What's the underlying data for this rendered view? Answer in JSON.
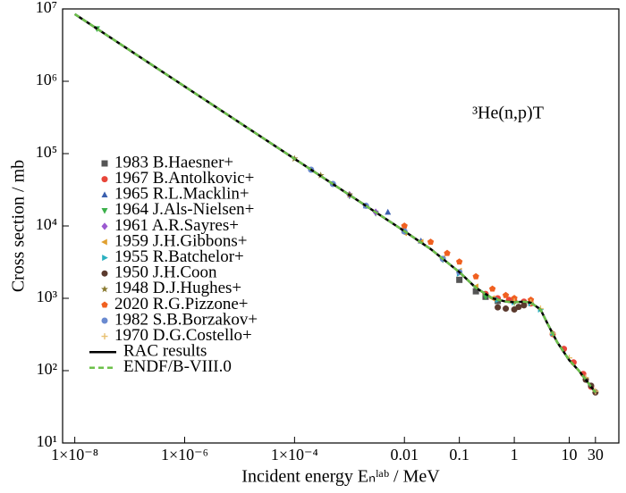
{
  "chart_data": {
    "type": "scatter",
    "annotation": "³He(n,p)T",
    "x_label": "Incident energy Eₙˡᵃᵇ / MeV",
    "y_label": "Cross section / mb",
    "log_x": true,
    "log_y": true,
    "xlim": [
      6e-09,
      80
    ],
    "ylim": [
      10,
      10000000
    ],
    "xticks": [
      {
        "value": 1e-08,
        "label": "1×10⁻⁸"
      },
      {
        "value": 1e-06,
        "label": "1×10⁻⁶"
      },
      {
        "value": 0.0001,
        "label": "1×10⁻⁴"
      },
      0.01,
      0.1,
      1,
      10,
      30
    ],
    "yticks": [
      {
        "value": 10,
        "label": "10¹"
      },
      {
        "value": 100,
        "label": "10²"
      },
      {
        "value": 1000,
        "label": "10³"
      },
      {
        "value": 10000,
        "label": "10⁴"
      },
      {
        "value": 100000,
        "label": "10⁵"
      },
      {
        "value": 1000000,
        "label": "10⁶"
      },
      {
        "value": 10000000,
        "label": "10⁷"
      }
    ],
    "series": [
      {
        "name": "1983 B.Haesner+",
        "color": "#555555",
        "marker": "square",
        "x": [
          0.1,
          0.2,
          0.3,
          0.5
        ],
        "values": [
          1800,
          1250,
          1050,
          920
        ]
      },
      {
        "name": "1967 B.Antolkovic+",
        "color": "#e8463a",
        "marker": "circle",
        "x": [
          0.3,
          0.5,
          0.8,
          1,
          1.5,
          2,
          5,
          8,
          12,
          18,
          25
        ],
        "values": [
          1150,
          1000,
          950,
          920,
          900,
          850,
          320,
          200,
          130,
          90,
          60
        ]
      },
      {
        "name": "1965 R.L.Macklin+",
        "color": "#3a5fae",
        "marker": "tri-up",
        "x": [
          0.002,
          0.005,
          0.01,
          0.02
        ],
        "values": [
          19000,
          15500,
          9000,
          6200
        ]
      },
      {
        "name": "1964 J.Als-Nielsen+",
        "color": "#3bb04a",
        "marker": "tri-down",
        "x": [
          2.53e-08,
          0.001,
          0.003,
          0.05,
          0.3,
          1
        ],
        "values": [
          5330000,
          26000,
          15000,
          3400,
          1050,
          870
        ]
      },
      {
        "name": "1961 A.R.Sayres+",
        "color": "#9b59d0",
        "marker": "diamond",
        "x": [
          0.001,
          0.003,
          0.01
        ],
        "values": [
          27000,
          15500,
          8500
        ]
      },
      {
        "name": "1959 J.H.Gibbons+",
        "color": "#e0a030",
        "marker": "tri-left",
        "x": [
          0.01,
          0.02,
          0.05,
          0.1,
          0.2,
          0.4
        ],
        "values": [
          8000,
          6000,
          3600,
          2400,
          1450,
          1000
        ]
      },
      {
        "name": "1955 R.Batchelor+",
        "color": "#2ab0c0",
        "marker": "tri-right",
        "x": [
          0.1,
          0.5,
          1,
          2,
          3,
          5
        ],
        "values": [
          2200,
          950,
          880,
          850,
          700,
          330
        ]
      },
      {
        "name": "1950 J.H.Coon",
        "color": "#5b3a2e",
        "marker": "circle",
        "x": [
          0.5,
          0.7,
          1,
          1.2,
          1.5,
          20,
          25,
          30
        ],
        "values": [
          750,
          720,
          700,
          760,
          800,
          75,
          62,
          50
        ]
      },
      {
        "name": "1948 D.J.Hughes+",
        "color": "#8a7a30",
        "marker": "star",
        "x": [
          0.0001,
          0.0003,
          0.001
        ],
        "values": [
          85000,
          50000,
          27000
        ]
      },
      {
        "name": "2020 R.G.Pizzone+",
        "color": "#f06020",
        "marker": "pentagon",
        "x": [
          0.01,
          0.03,
          0.06,
          0.1,
          0.2,
          0.4,
          0.7,
          1,
          2
        ],
        "values": [
          10000,
          6000,
          4200,
          3200,
          2000,
          1350,
          1100,
          1000,
          950
        ]
      },
      {
        "name": "1982 S.B.Borzakov+",
        "color": "#6a8ad0",
        "marker": "circle",
        "x": [
          0.0002,
          0.0005,
          0.002,
          0.01,
          0.05,
          0.1
        ],
        "values": [
          60000,
          38000,
          19000,
          8400,
          3500,
          2300
        ]
      },
      {
        "name": "1970 D.G.Costello+",
        "color": "#e8c070",
        "marker": "plus",
        "x": [
          1,
          2,
          3,
          5,
          10,
          20,
          30
        ],
        "values": [
          900,
          880,
          720,
          330,
          150,
          80,
          52
        ]
      }
    ],
    "lines": [
      {
        "name": "RAC results",
        "color": "#000000",
        "dash": false,
        "x": [
          1e-08,
          1e-07,
          1e-06,
          1e-05,
          0.0001,
          0.001,
          0.01,
          0.03,
          0.1,
          0.2,
          0.4,
          0.7,
          1,
          1.5,
          2,
          3,
          4,
          6,
          10,
          15,
          20,
          30
        ],
        "values": [
          8480000,
          2680000,
          848000,
          268000,
          84800,
          26800,
          8480,
          4800,
          2300,
          1400,
          1000,
          900,
          880,
          900,
          870,
          700,
          450,
          250,
          140,
          100,
          75,
          50
        ]
      },
      {
        "name": "ENDF/B-VIII.0",
        "color": "#6cc04a",
        "dash": true,
        "x": [
          1e-08,
          1e-07,
          1e-06,
          1e-05,
          0.0001,
          0.001,
          0.01,
          0.03,
          0.1,
          0.2,
          0.4,
          0.7,
          1,
          1.5,
          2,
          3,
          4,
          6,
          10,
          15,
          20,
          30
        ],
        "values": [
          8480000,
          2680000,
          848000,
          268000,
          84800,
          26800,
          8480,
          4800,
          2300,
          1400,
          1000,
          900,
          880,
          900,
          870,
          700,
          450,
          250,
          140,
          100,
          75,
          50
        ]
      }
    ]
  }
}
